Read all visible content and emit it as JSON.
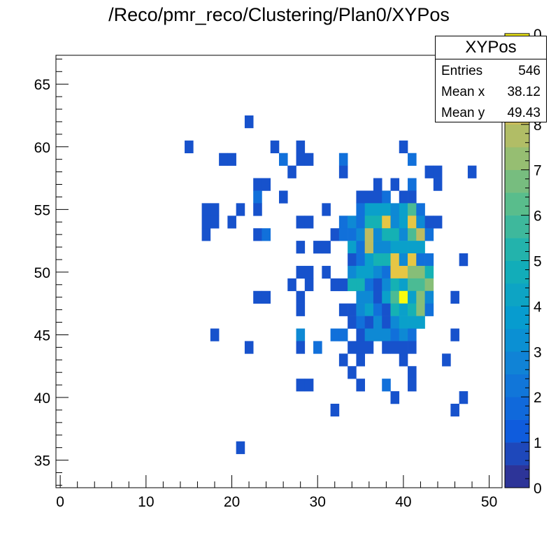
{
  "title": "/Reco/pmr_reco/Clustering/Plan0/XYPos",
  "stats": {
    "name": "XYPos",
    "rows": [
      {
        "label": "Entries",
        "value": "546"
      },
      {
        "label": "Mean x",
        "value": "38.12"
      },
      {
        "label": "Mean y",
        "value": "49.43"
      }
    ]
  },
  "chart_data": {
    "type": "heatmap",
    "title": "/Reco/pmr_reco/Clustering/Plan0/XYPos",
    "xlabel": "",
    "ylabel": "",
    "xlim": [
      -0.5,
      51.5
    ],
    "ylim": [
      32.8,
      67.3
    ],
    "bin_width_x": 1,
    "bin_width_y": 1,
    "x_ticks": [
      0,
      10,
      20,
      30,
      40,
      50
    ],
    "y_ticks": [
      35,
      40,
      45,
      50,
      55,
      60,
      65
    ],
    "z_range": [
      0,
      10
    ],
    "z_ticks": [
      0,
      1,
      2,
      3,
      4,
      5,
      6,
      7,
      8
    ],
    "z_top_tick_label_partial": "0",
    "colormap": "kBird",
    "cells": [
      [
        22,
        62,
        1
      ],
      [
        15,
        60,
        1
      ],
      [
        25,
        60,
        1
      ],
      [
        28,
        60,
        1
      ],
      [
        40,
        60,
        1
      ],
      [
        19,
        59,
        1
      ],
      [
        20,
        59,
        1
      ],
      [
        26,
        59,
        2
      ],
      [
        28,
        59,
        1
      ],
      [
        29,
        59,
        1
      ],
      [
        33,
        59,
        2
      ],
      [
        41,
        59,
        2
      ],
      [
        27,
        58,
        1
      ],
      [
        33,
        58,
        1
      ],
      [
        43,
        58,
        1
      ],
      [
        44,
        58,
        1
      ],
      [
        48,
        58,
        1
      ],
      [
        23,
        57,
        1
      ],
      [
        24,
        57,
        1
      ],
      [
        37,
        57,
        1
      ],
      [
        39,
        57,
        1
      ],
      [
        41,
        57,
        2
      ],
      [
        44,
        57,
        1
      ],
      [
        23,
        56,
        2
      ],
      [
        26,
        56,
        1
      ],
      [
        35,
        56,
        1
      ],
      [
        36,
        56,
        1
      ],
      [
        37,
        56,
        1
      ],
      [
        38,
        56,
        2
      ],
      [
        40,
        56,
        1
      ],
      [
        41,
        56,
        1
      ],
      [
        17,
        55,
        1
      ],
      [
        18,
        55,
        1
      ],
      [
        21,
        55,
        1
      ],
      [
        23,
        55,
        1
      ],
      [
        31,
        55,
        1
      ],
      [
        35,
        55,
        2
      ],
      [
        36,
        55,
        4
      ],
      [
        37,
        55,
        4
      ],
      [
        38,
        55,
        4
      ],
      [
        39,
        55,
        3
      ],
      [
        40,
        55,
        4
      ],
      [
        41,
        55,
        6
      ],
      [
        42,
        55,
        2
      ],
      [
        17,
        54,
        1
      ],
      [
        18,
        54,
        1
      ],
      [
        20,
        54,
        1
      ],
      [
        28,
        54,
        1
      ],
      [
        29,
        54,
        1
      ],
      [
        33,
        54,
        2
      ],
      [
        34,
        54,
        3
      ],
      [
        35,
        54,
        2
      ],
      [
        36,
        54,
        5
      ],
      [
        37,
        54,
        5
      ],
      [
        38,
        54,
        9
      ],
      [
        39,
        54,
        3
      ],
      [
        40,
        54,
        4
      ],
      [
        41,
        54,
        9
      ],
      [
        42,
        54,
        3
      ],
      [
        43,
        54,
        1
      ],
      [
        44,
        54,
        1
      ],
      [
        17,
        53,
        1
      ],
      [
        23,
        53,
        1
      ],
      [
        24,
        53,
        2
      ],
      [
        32,
        53,
        1
      ],
      [
        33,
        53,
        2
      ],
      [
        34,
        53,
        2
      ],
      [
        35,
        53,
        3
      ],
      [
        36,
        53,
        8
      ],
      [
        37,
        53,
        3
      ],
      [
        38,
        53,
        5
      ],
      [
        39,
        53,
        5
      ],
      [
        40,
        53,
        3
      ],
      [
        41,
        53,
        6
      ],
      [
        42,
        53,
        8
      ],
      [
        43,
        53,
        2
      ],
      [
        28,
        52,
        1
      ],
      [
        30,
        52,
        1
      ],
      [
        31,
        52,
        1
      ],
      [
        34,
        52,
        4
      ],
      [
        35,
        52,
        2
      ],
      [
        36,
        52,
        8
      ],
      [
        37,
        52,
        3
      ],
      [
        38,
        52,
        3
      ],
      [
        39,
        52,
        4
      ],
      [
        40,
        52,
        4
      ],
      [
        41,
        52,
        4
      ],
      [
        42,
        52,
        4
      ],
      [
        34,
        51,
        1
      ],
      [
        35,
        51,
        2
      ],
      [
        36,
        51,
        4
      ],
      [
        37,
        51,
        5
      ],
      [
        38,
        51,
        5
      ],
      [
        39,
        51,
        9
      ],
      [
        40,
        51,
        3
      ],
      [
        41,
        51,
        9
      ],
      [
        42,
        51,
        2
      ],
      [
        43,
        51,
        2
      ],
      [
        47,
        51,
        1
      ],
      [
        28,
        50,
        1
      ],
      [
        29,
        50,
        1
      ],
      [
        31,
        50,
        1
      ],
      [
        34,
        50,
        3
      ],
      [
        35,
        50,
        4
      ],
      [
        36,
        50,
        4
      ],
      [
        37,
        50,
        3
      ],
      [
        38,
        50,
        2
      ],
      [
        39,
        50,
        9
      ],
      [
        40,
        50,
        9
      ],
      [
        41,
        50,
        7
      ],
      [
        42,
        50,
        7
      ],
      [
        43,
        50,
        5
      ],
      [
        27,
        49,
        1
      ],
      [
        29,
        49,
        1
      ],
      [
        32,
        49,
        1
      ],
      [
        33,
        49,
        1
      ],
      [
        34,
        49,
        5
      ],
      [
        35,
        49,
        5
      ],
      [
        36,
        49,
        2
      ],
      [
        37,
        49,
        1
      ],
      [
        38,
        49,
        3
      ],
      [
        39,
        49,
        5
      ],
      [
        40,
        49,
        4
      ],
      [
        41,
        49,
        6
      ],
      [
        42,
        49,
        6
      ],
      [
        43,
        49,
        7
      ],
      [
        23,
        48,
        1
      ],
      [
        24,
        48,
        1
      ],
      [
        28,
        48,
        1
      ],
      [
        35,
        48,
        3
      ],
      [
        36,
        48,
        3
      ],
      [
        37,
        48,
        1
      ],
      [
        38,
        48,
        4
      ],
      [
        39,
        48,
        6
      ],
      [
        40,
        48,
        10
      ],
      [
        41,
        48,
        4
      ],
      [
        42,
        48,
        7
      ],
      [
        43,
        48,
        3
      ],
      [
        46,
        48,
        1
      ],
      [
        28,
        47,
        1
      ],
      [
        33,
        47,
        1
      ],
      [
        34,
        47,
        1
      ],
      [
        35,
        47,
        3
      ],
      [
        36,
        47,
        4
      ],
      [
        37,
        47,
        2
      ],
      [
        38,
        47,
        1
      ],
      [
        39,
        47,
        5
      ],
      [
        40,
        47,
        4
      ],
      [
        41,
        47,
        5
      ],
      [
        42,
        47,
        7
      ],
      [
        43,
        47,
        2
      ],
      [
        34,
        46,
        1
      ],
      [
        35,
        46,
        2
      ],
      [
        36,
        46,
        1
      ],
      [
        37,
        46,
        3
      ],
      [
        38,
        46,
        1
      ],
      [
        39,
        46,
        3
      ],
      [
        40,
        46,
        4
      ],
      [
        41,
        46,
        4
      ],
      [
        42,
        46,
        4
      ],
      [
        18,
        45,
        1
      ],
      [
        28,
        45,
        3
      ],
      [
        32,
        45,
        2
      ],
      [
        33,
        45,
        2
      ],
      [
        35,
        45,
        1
      ],
      [
        36,
        45,
        3
      ],
      [
        37,
        45,
        3
      ],
      [
        38,
        45,
        3
      ],
      [
        39,
        45,
        2
      ],
      [
        40,
        45,
        3
      ],
      [
        41,
        45,
        2
      ],
      [
        46,
        45,
        1
      ],
      [
        22,
        44,
        1
      ],
      [
        28,
        44,
        1
      ],
      [
        30,
        44,
        2
      ],
      [
        34,
        44,
        1
      ],
      [
        35,
        44,
        1
      ],
      [
        36,
        44,
        1
      ],
      [
        38,
        44,
        1
      ],
      [
        39,
        44,
        1
      ],
      [
        40,
        44,
        1
      ],
      [
        41,
        44,
        1
      ],
      [
        33,
        43,
        1
      ],
      [
        35,
        43,
        1
      ],
      [
        40,
        43,
        1
      ],
      [
        45,
        43,
        1
      ],
      [
        34,
        42,
        1
      ],
      [
        41,
        42,
        1
      ],
      [
        28,
        41,
        1
      ],
      [
        29,
        41,
        1
      ],
      [
        35,
        41,
        1
      ],
      [
        38,
        41,
        2
      ],
      [
        41,
        41,
        1
      ],
      [
        39,
        40,
        1
      ],
      [
        47,
        40,
        1
      ],
      [
        32,
        39,
        1
      ],
      [
        46,
        39,
        1
      ],
      [
        21,
        36,
        1
      ]
    ]
  }
}
